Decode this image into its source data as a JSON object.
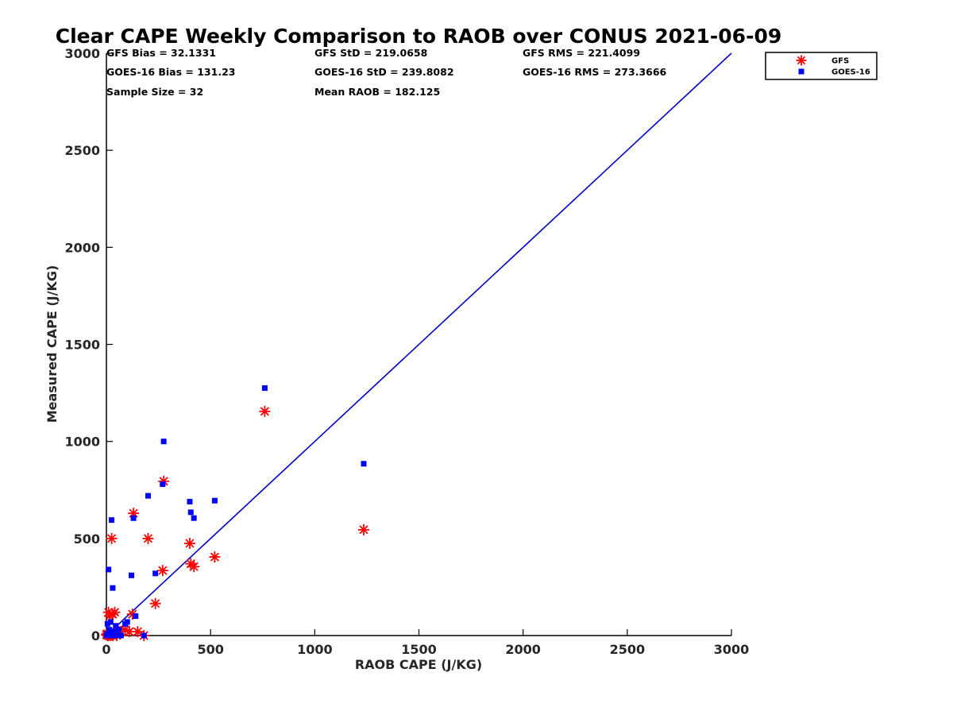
{
  "chart_data": {
    "type": "scatter",
    "title": "Clear CAPE Weekly Comparison to RAOB over CONUS 2021-06-09",
    "xlabel": "RAOB CAPE (J/KG)",
    "ylabel": "Measured CAPE (J/KG)",
    "xlim": [
      0,
      3000
    ],
    "ylim": [
      0,
      3000
    ],
    "xticks": [
      "0",
      "500",
      "1000",
      "1500",
      "2000",
      "2500",
      "3000"
    ],
    "yticks": [
      "0",
      "500",
      "1000",
      "1500",
      "2000",
      "2500",
      "3000"
    ],
    "grid": false,
    "legend_position": "top-right",
    "stats": [
      "GFS Bias = 32.1331",
      "GFS StD = 219.0658",
      "GFS RMS = 221.4099",
      "GOES-16 Bias = 131.23",
      "GOES-16 StD = 239.8082",
      "GOES-16 RMS = 273.3666",
      "Sample Size = 32",
      "Mean RAOB = 182.125"
    ],
    "reference_line": {
      "x": [
        0,
        3000
      ],
      "y": [
        0,
        3000
      ],
      "color": "#0000cc"
    },
    "series": [
      {
        "name": "GFS",
        "marker": "asterisk",
        "color": "#ff0000",
        "x": [
          0,
          5,
          10,
          15,
          20,
          25,
          30,
          40,
          50,
          60,
          70,
          90,
          110,
          125,
          130,
          150,
          180,
          200,
          235,
          270,
          275,
          400,
          405,
          420,
          520,
          760,
          1235,
          20,
          30,
          10,
          5,
          45
        ],
        "y": [
          5,
          10,
          120,
          100,
          0,
          500,
          110,
          120,
          0,
          20,
          20,
          30,
          20,
          110,
          630,
          20,
          0,
          500,
          165,
          335,
          795,
          475,
          370,
          355,
          405,
          1155,
          545,
          0,
          0,
          0,
          0,
          10
        ]
      },
      {
        "name": "GOES-16",
        "marker": "square",
        "color": "#0000ff",
        "x": [
          0,
          5,
          10,
          15,
          20,
          25,
          30,
          40,
          50,
          60,
          70,
          90,
          100,
          120,
          130,
          140,
          180,
          200,
          235,
          270,
          275,
          400,
          405,
          420,
          520,
          760,
          1235,
          15,
          25,
          35,
          5,
          45
        ],
        "y": [
          0,
          60,
          340,
          0,
          70,
          595,
          245,
          20,
          0,
          30,
          0,
          60,
          70,
          310,
          605,
          100,
          0,
          720,
          320,
          780,
          1000,
          690,
          635,
          605,
          695,
          1275,
          885,
          30,
          10,
          0,
          10,
          50
        ]
      }
    ]
  }
}
